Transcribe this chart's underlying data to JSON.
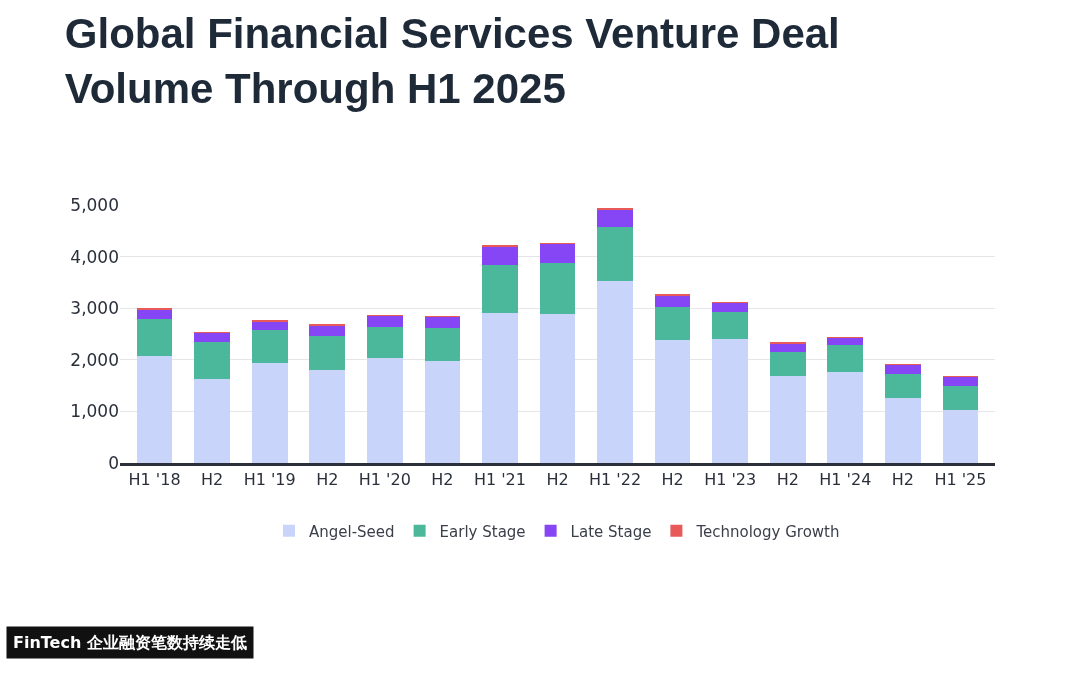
{
  "chart_data": {
    "type": "bar",
    "title": "Global Financial Services Venture Deal Volume Through H1 2025",
    "categories": [
      "H1 '18",
      "H2",
      "H1 '19",
      "H2",
      "H1 '20",
      "H2",
      "H1 '21",
      "H2",
      "H1 '22",
      "H2",
      "H1 '23",
      "H2",
      "H1 '24",
      "H2",
      "H1 '25"
    ],
    "stacked": true,
    "series": [
      {
        "name": "Angel-Seed",
        "color": "#c9d4fa",
        "values": [
          2080,
          1630,
          1940,
          1810,
          2030,
          1980,
          2910,
          2890,
          3530,
          2390,
          2410,
          1690,
          1760,
          1260,
          1020
        ]
      },
      {
        "name": "Early Stage",
        "color": "#4bb89b",
        "values": [
          710,
          710,
          640,
          650,
          610,
          630,
          930,
          990,
          1050,
          640,
          520,
          460,
          530,
          470,
          480
        ]
      },
      {
        "name": "Late Stage",
        "color": "#8646f6",
        "values": [
          190,
          180,
          150,
          210,
          210,
          220,
          350,
          370,
          340,
          220,
          180,
          170,
          140,
          170,
          170
        ]
      },
      {
        "name": "Technology Growth",
        "color": "#e85a5a",
        "values": [
          20,
          10,
          50,
          10,
          10,
          10,
          40,
          10,
          10,
          10,
          10,
          10,
          10,
          10,
          10
        ]
      }
    ],
    "ylim": [
      0,
      5000
    ],
    "yticks": [
      0,
      {
        "value": 1000,
        "label": "1,000"
      },
      {
        "value": 2000,
        "label": "2,000"
      },
      {
        "value": 3000,
        "label": "3,000"
      },
      {
        "value": 4000,
        "label": "4,000"
      },
      {
        "value": 5000,
        "label": "5,000"
      }
    ],
    "grid": "y",
    "legend": "bottom",
    "annotations": [
      "FinTech 企业融资笔数持续走低"
    ]
  }
}
